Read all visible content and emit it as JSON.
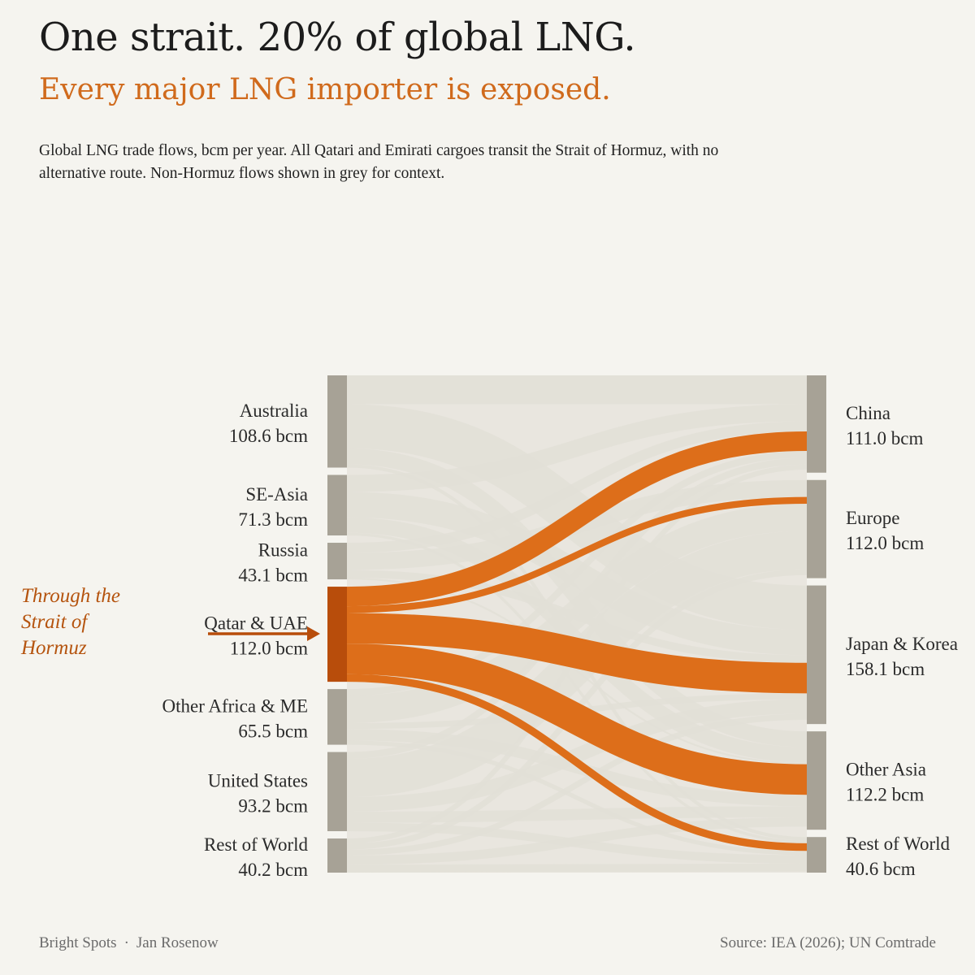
{
  "header": {
    "title": "One strait. 20% of global LNG.",
    "subtitle": "Every major LNG importer is exposed.",
    "description": "Global LNG trade flows, bcm per year. All Qatari and Emirati cargoes transit the Strait of Hormuz, with no alternative route. Non-Hormuz flows shown in grey for context."
  },
  "callout": {
    "lines": [
      "Through the",
      "Strait of",
      "Hormuz"
    ]
  },
  "chart_data": {
    "type": "sankey",
    "unit": "bcm",
    "sources": [
      {
        "name": "Australia",
        "value": 108.6,
        "label": "108.6 bcm"
      },
      {
        "name": "SE-Asia",
        "value": 71.3,
        "label": "71.3 bcm"
      },
      {
        "name": "Russia",
        "value": 43.1,
        "label": "43.1 bcm"
      },
      {
        "name": "Qatar & UAE",
        "value": 112.0,
        "label": "112.0 bcm",
        "highlight": true
      },
      {
        "name": "Other Africa & ME",
        "value": 65.5,
        "label": "65.5 bcm"
      },
      {
        "name": "United States",
        "value": 93.2,
        "label": "93.2 bcm"
      },
      {
        "name": "Rest of World",
        "value": 40.2,
        "label": "40.2 bcm"
      }
    ],
    "targets": [
      {
        "name": "China",
        "value": 111.0,
        "label": "111.0 bcm"
      },
      {
        "name": "Europe",
        "value": 112.0,
        "label": "112.0 bcm"
      },
      {
        "name": "Japan & Korea",
        "value": 158.1,
        "label": "158.1 bcm"
      },
      {
        "name": "Other Asia",
        "value": 112.2,
        "label": "112.2 bcm"
      },
      {
        "name": "Rest of World",
        "value": 40.6,
        "label": "40.6 bcm"
      }
    ],
    "highlight_flows": [
      {
        "from": "Qatar & UAE",
        "to": "China",
        "value": 23.0
      },
      {
        "from": "Qatar & UAE",
        "to": "Europe",
        "value": 8.0
      },
      {
        "from": "Qatar & UAE",
        "to": "Japan & Korea",
        "value": 36.0
      },
      {
        "from": "Qatar & UAE",
        "to": "Other Asia",
        "value": 36.0
      },
      {
        "from": "Qatar & UAE",
        "to": "Rest of World",
        "value": 9.0
      }
    ],
    "other_flows": [
      {
        "from": "Australia",
        "to": "China",
        "value": 34.0
      },
      {
        "from": "Australia",
        "to": "Japan & Korea",
        "value": 52.0
      },
      {
        "from": "Australia",
        "to": "Other Asia",
        "value": 18.6
      },
      {
        "from": "Australia",
        "to": "Rest of World",
        "value": 4.0
      },
      {
        "from": "SE-Asia",
        "to": "China",
        "value": 20.0
      },
      {
        "from": "SE-Asia",
        "to": "Japan & Korea",
        "value": 30.0
      },
      {
        "from": "SE-Asia",
        "to": "Other Asia",
        "value": 18.0
      },
      {
        "from": "SE-Asia",
        "to": "Rest of World",
        "value": 3.3
      },
      {
        "from": "Russia",
        "to": "China",
        "value": 12.0
      },
      {
        "from": "Russia",
        "to": "Europe",
        "value": 20.0
      },
      {
        "from": "Russia",
        "to": "Japan & Korea",
        "value": 9.0
      },
      {
        "from": "Russia",
        "to": "Other Asia",
        "value": 2.1
      },
      {
        "from": "Other Africa & ME",
        "to": "China",
        "value": 8.0
      },
      {
        "from": "Other Africa & ME",
        "to": "Europe",
        "value": 32.0
      },
      {
        "from": "Other Africa & ME",
        "to": "Japan & Korea",
        "value": 7.0
      },
      {
        "from": "Other Africa & ME",
        "to": "Other Asia",
        "value": 13.5
      },
      {
        "from": "Other Africa & ME",
        "to": "Rest of World",
        "value": 5.0
      },
      {
        "from": "United States",
        "to": "China",
        "value": 8.0
      },
      {
        "from": "United States",
        "to": "Europe",
        "value": 45.0
      },
      {
        "from": "United States",
        "to": "Japan & Korea",
        "value": 17.1
      },
      {
        "from": "United States",
        "to": "Other Asia",
        "value": 13.1
      },
      {
        "from": "United States",
        "to": "Rest of World",
        "value": 10.0
      },
      {
        "from": "Rest of World",
        "to": "China",
        "value": 6.0
      },
      {
        "from": "Rest of World",
        "to": "Europe",
        "value": 7.0
      },
      {
        "from": "Rest of World",
        "to": "Japan & Korea",
        "value": 7.0
      },
      {
        "from": "Rest of World",
        "to": "Other Asia",
        "value": 10.9
      },
      {
        "from": "Rest of World",
        "to": "Rest of World",
        "value": 9.3
      }
    ],
    "colors": {
      "highlight_flow": "#dd6e1a",
      "highlight_node": "#b84d0b",
      "node": "#a7a296",
      "other_flow": "#e2dfd7",
      "background": "#f5f4ef"
    }
  },
  "footer": {
    "brand": "Bright Spots",
    "separator": "·",
    "author": "Jan Rosenow",
    "source": "Source: IEA (2026); UN Comtrade"
  }
}
